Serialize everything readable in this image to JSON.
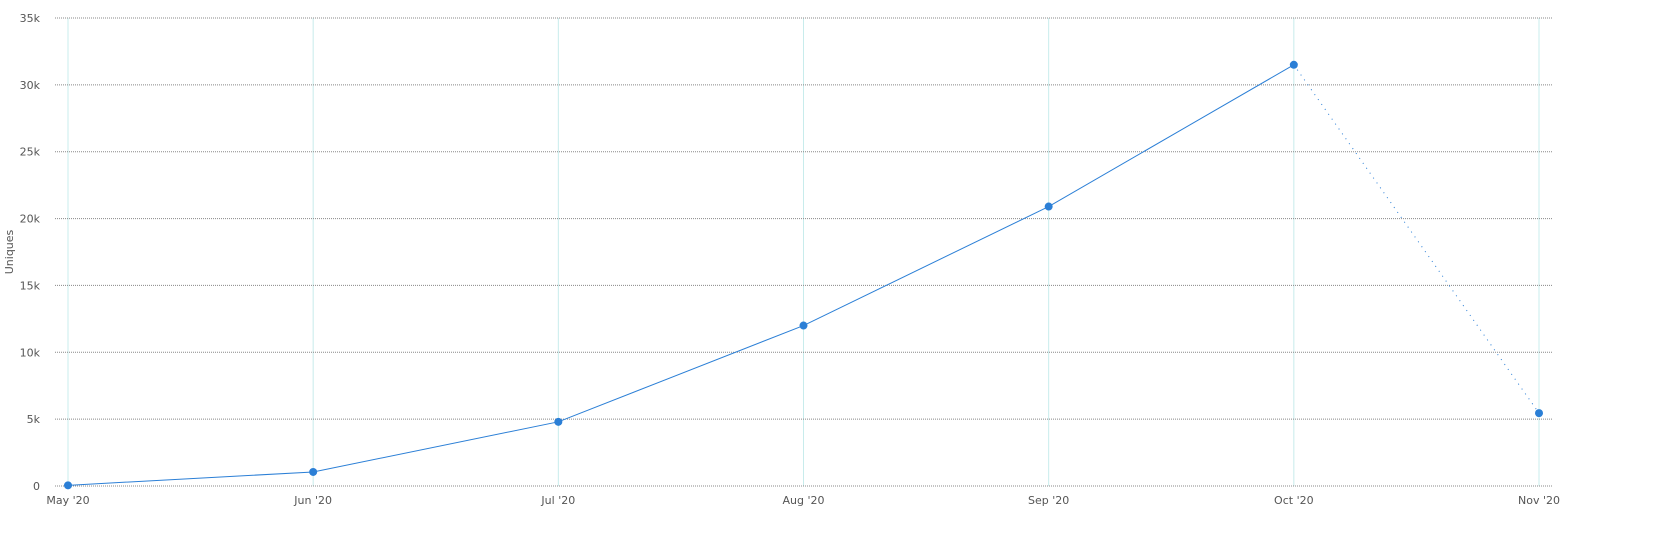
{
  "chart_data": {
    "type": "line",
    "title": "",
    "xlabel": "",
    "ylabel": "Uniques",
    "ylim": [
      0,
      35000
    ],
    "yticks": [
      0,
      5000,
      10000,
      15000,
      20000,
      25000,
      30000,
      35000
    ],
    "ytick_labels": [
      "0",
      "5k",
      "10k",
      "15k",
      "20k",
      "25k",
      "30k",
      "35k"
    ],
    "categories": [
      "May '20",
      "Jun '20",
      "Jul '20",
      "Aug '20",
      "Sep '20",
      "Oct '20",
      "Nov '20"
    ],
    "values": [
      50,
      1050,
      4800,
      12000,
      20900,
      31500,
      5450
    ],
    "incomplete_last_segment": true,
    "grid": {
      "horizontal": "dotted",
      "vertical": "solid"
    },
    "colors": {
      "line": "#2b7fd6",
      "hgrid": "#888888",
      "vgrid": "#c8ecec",
      "text": "#555555"
    }
  }
}
